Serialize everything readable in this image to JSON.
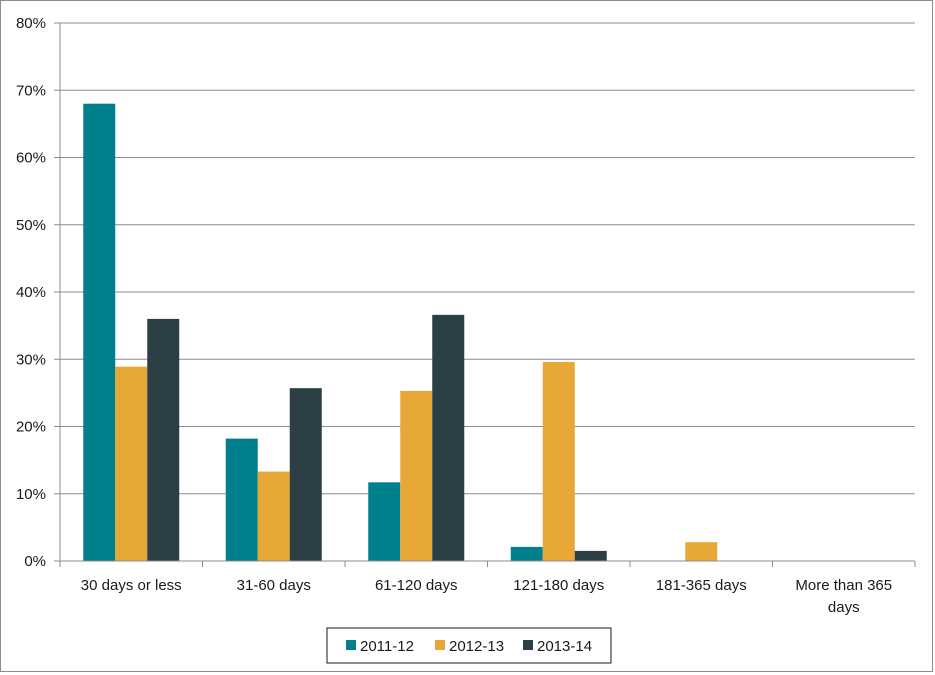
{
  "chart_data": {
    "type": "bar",
    "categories": [
      [
        "30 days or less"
      ],
      [
        "31-60 days"
      ],
      [
        "61-120 days"
      ],
      [
        "121-180 days"
      ],
      [
        "181-365 days"
      ],
      [
        "More than 365",
        "days"
      ]
    ],
    "series": [
      {
        "name": "2011-12",
        "color": "#00808c",
        "values": [
          68,
          18.2,
          11.7,
          2.1,
          0,
          0
        ]
      },
      {
        "name": "2012-13",
        "color": "#e8a838",
        "values": [
          28.9,
          13.3,
          25.3,
          29.6,
          2.8,
          0
        ]
      },
      {
        "name": "2013-14",
        "color": "#2b3f45",
        "values": [
          36,
          25.7,
          36.6,
          1.5,
          0,
          0
        ]
      }
    ],
    "yticks": [
      "0%",
      "10%",
      "20%",
      "30%",
      "40%",
      "50%",
      "60%",
      "70%",
      "80%"
    ],
    "ylim": [
      0,
      80
    ],
    "title": "",
    "xlabel": "",
    "ylabel": "",
    "grid": true,
    "legend_position": "bottom"
  }
}
